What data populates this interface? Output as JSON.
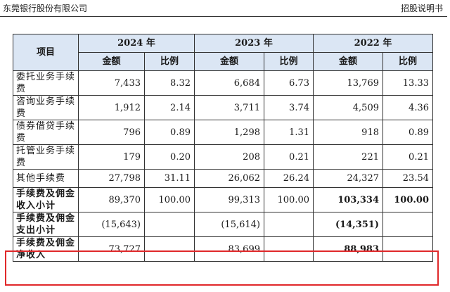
{
  "header": {
    "left": "东莞银行股份有限公司",
    "right": "招股说明书"
  },
  "table": {
    "item_header": "项目",
    "years": [
      "2024 年",
      "2023 年",
      "2022 年"
    ],
    "amount_label": "金额",
    "ratio_label": "比例",
    "rows": [
      {
        "label": "委托业务手续费",
        "v2024": "7,433",
        "r2024": "8.32",
        "v2023": "6,684",
        "r2023": "6.73",
        "v2022": "13,769",
        "r2022": "13.33"
      },
      {
        "label": "咨询业务手续费",
        "v2024": "1,912",
        "r2024": "2.14",
        "v2023": "3,711",
        "r2023": "3.74",
        "v2022": "4,509",
        "r2022": "4.36"
      },
      {
        "label": "债券借贷手续费",
        "v2024": "796",
        "r2024": "0.89",
        "v2023": "1,298",
        "r2023": "1.31",
        "v2022": "918",
        "r2022": "0.89"
      },
      {
        "label": "托管业务手续费",
        "v2024": "179",
        "r2024": "0.20",
        "v2023": "208",
        "r2023": "0.21",
        "v2022": "221",
        "r2022": "0.21"
      },
      {
        "label": "其他手续费",
        "v2024": "27,798",
        "r2024": "31.11",
        "v2023": "26,062",
        "r2023": "26.24",
        "v2022": "24,327",
        "r2022": "23.54"
      },
      {
        "label": "手续费及佣金收入小计",
        "v2024": "89,370",
        "r2024": "100.00",
        "v2023": "99,313",
        "r2023": "100.00",
        "v2022": "103,334",
        "r2022": "100.00"
      },
      {
        "label": "手续费及佣金支出小计",
        "v2024": "(15,643)",
        "r2024": "",
        "v2023": "(15,614)",
        "r2023": "",
        "v2022": "(14,351)",
        "r2022": ""
      },
      {
        "label": "手续费及佣金净收入",
        "v2024": "73,727",
        "r2024": "",
        "v2023": "83,699",
        "r2023": "",
        "v2022": "88,983",
        "r2022": ""
      }
    ]
  },
  "colors": {
    "header_bg": "#dbe6f4",
    "highlight_border": "#e0282a"
  }
}
